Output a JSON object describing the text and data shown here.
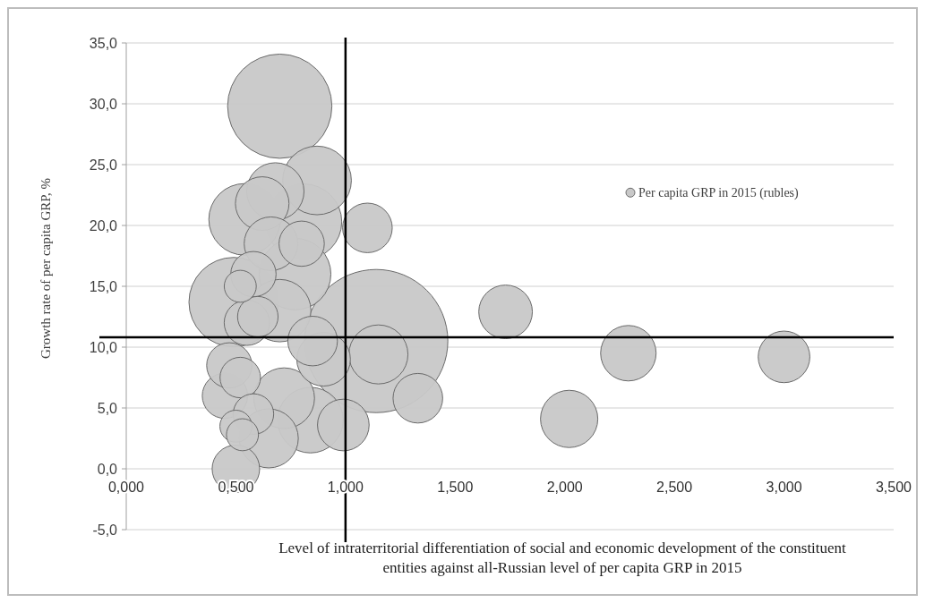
{
  "chart_data": {
    "type": "bubble",
    "xlabel": "Level of intraterritorial differentiation of social and economic development of the constituent entities against all-Russian level of  per capita GRP in 2015",
    "ylabel": "Growth rate of per capita GRP, %",
    "xlim": [
      0,
      3.5
    ],
    "xticks": [
      {
        "value": 0,
        "label": "0,000"
      },
      {
        "value": 0.5,
        "label": "0,500"
      },
      {
        "value": 1,
        "label": "1,000"
      },
      {
        "value": 1.5,
        "label": "1,500"
      },
      {
        "value": 2,
        "label": "2,000"
      },
      {
        "value": 2.5,
        "label": "2,500"
      },
      {
        "value": 3,
        "label": "3,000"
      },
      {
        "value": 3.5,
        "label": "3,500"
      }
    ],
    "ylim": [
      -5,
      35
    ],
    "yticks": [
      {
        "value": -5,
        "label": "-5,0"
      },
      {
        "value": 0,
        "label": "0,0"
      },
      {
        "value": 5,
        "label": "5,0"
      },
      {
        "value": 10,
        "label": "10,0"
      },
      {
        "value": 15,
        "label": "15,0"
      },
      {
        "value": 20,
        "label": "20,0"
      },
      {
        "value": 25,
        "label": "25,0"
      },
      {
        "value": 30,
        "label": "30,0"
      },
      {
        "value": 35,
        "label": "35,0"
      }
    ],
    "grid": "y",
    "legend": "top right",
    "ref_lines": [
      {
        "axis": "x",
        "value": 1,
        "color": "#000000"
      },
      {
        "axis": "y",
        "value": 10.8,
        "color": "#000000"
      }
    ],
    "series": [
      {
        "name": "Per capita GRP in 2015 (rubles)",
        "color": "#c8c8c8",
        "x": [
          1.14,
          0.7,
          0.87,
          1.1,
          1.73,
          2.29,
          3.0,
          2.02,
          1.33,
          1.15,
          0.99,
          0.84,
          0.81,
          0.77,
          0.49,
          0.5,
          0.65,
          0.72,
          0.45,
          0.47,
          0.52,
          0.5,
          0.53,
          0.58,
          0.55,
          0.6,
          0.52,
          0.58,
          0.54,
          0.62,
          0.68,
          0.66,
          0.7,
          0.85,
          0.9,
          0.8
        ],
        "values": [
          10.5,
          29.8,
          23.7,
          19.8,
          12.9,
          9.5,
          9.2,
          4.1,
          5.8,
          9.4,
          3.6,
          4.0,
          20.3,
          16.0,
          13.7,
          0.0,
          2.5,
          5.8,
          6.0,
          8.5,
          7.5,
          3.5,
          2.8,
          4.5,
          12.0,
          12.5,
          15.0,
          16.0,
          20.5,
          21.8,
          22.8,
          18.5,
          13.0,
          10.5,
          9.0,
          18.5
        ],
        "sizes": [
          1,
          0.53,
          0.23,
          0.12,
          0.14,
          0.15,
          0.13,
          0.16,
          0.12,
          0.17,
          0.13,
          0.21,
          0.28,
          0.25,
          0.39,
          0.11,
          0.17,
          0.18,
          0.1,
          0.1,
          0.08,
          0.05,
          0.05,
          0.08,
          0.1,
          0.08,
          0.05,
          0.1,
          0.25,
          0.14,
          0.16,
          0.14,
          0.19,
          0.12,
          0.14,
          0.1
        ]
      }
    ]
  }
}
